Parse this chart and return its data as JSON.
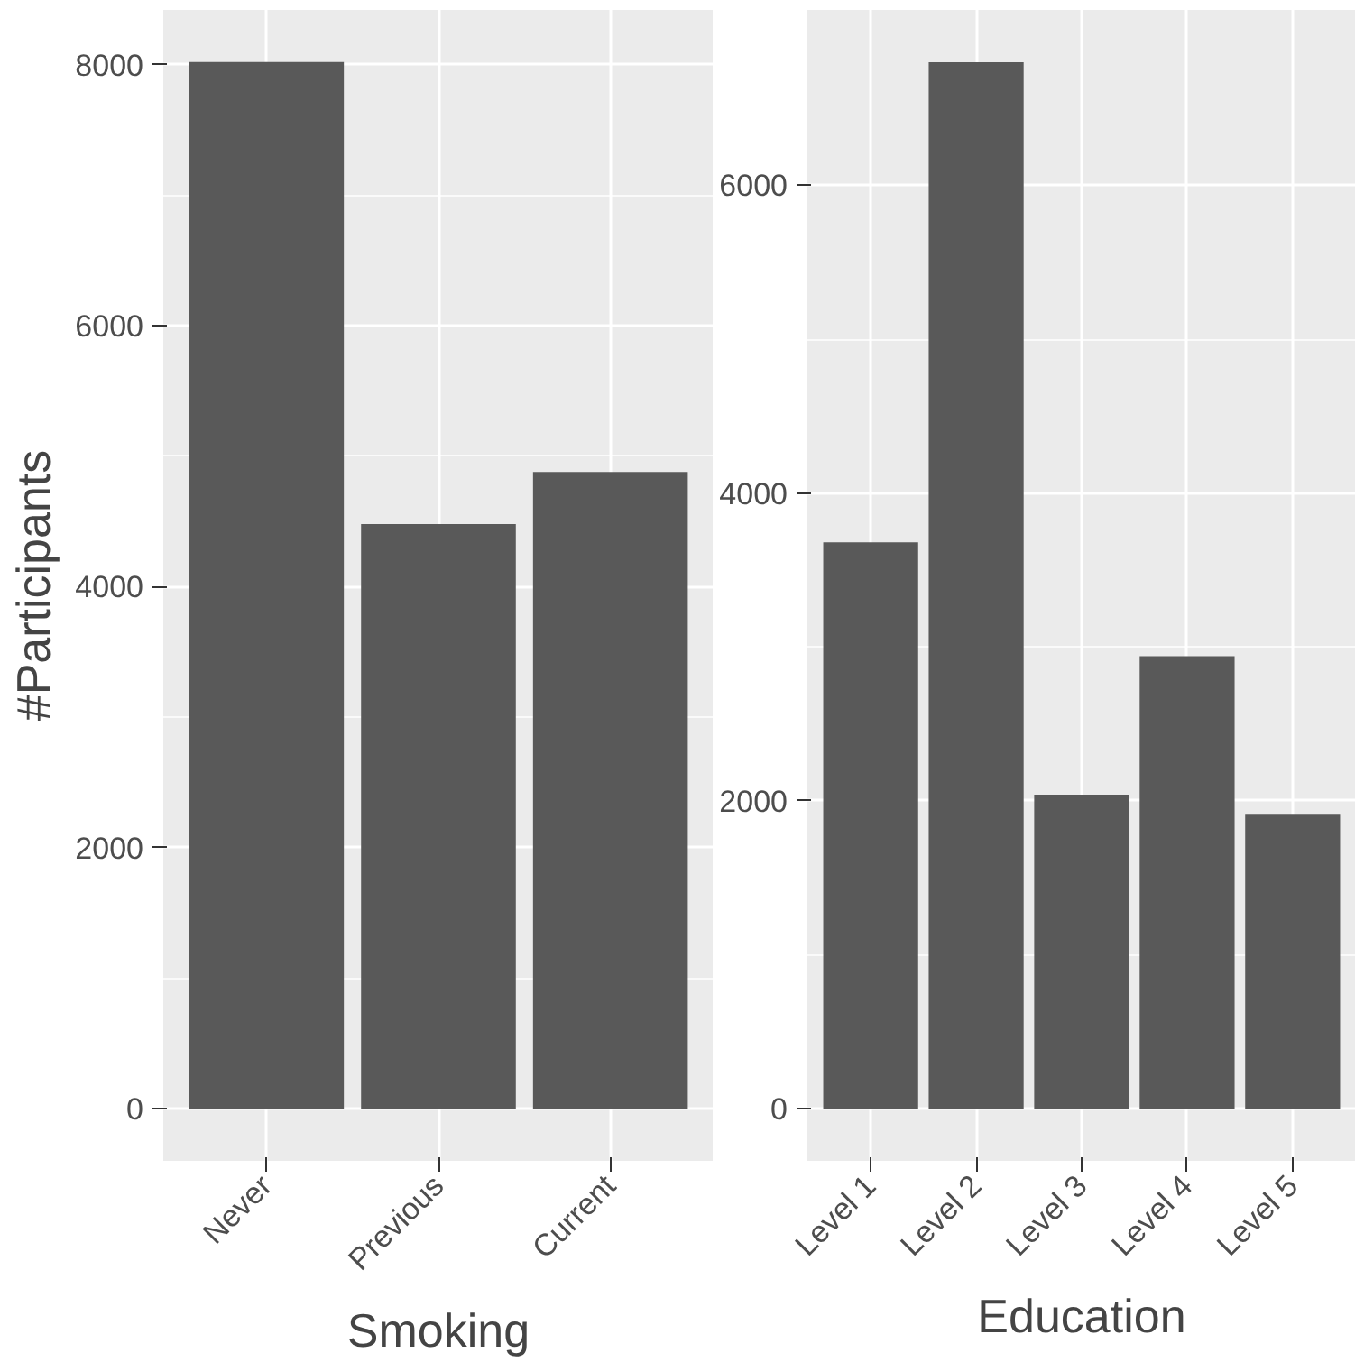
{
  "chart_data": [
    {
      "type": "bar",
      "xlabel": "Smoking",
      "ylabel": "#Participants",
      "categories": [
        "Never",
        "Previous",
        "Current"
      ],
      "values": [
        8020,
        4480,
        4880
      ],
      "color": "#595959",
      "ylim": [
        -400,
        8420
      ],
      "yticks": [
        0,
        2000,
        4000,
        6000,
        8000
      ],
      "grid": true
    },
    {
      "type": "bar",
      "xlabel": "Education",
      "categories": [
        "Level 1",
        "Level 2",
        "Level 3",
        "Level 4",
        "Level 5"
      ],
      "values": [
        3680,
        6800,
        2040,
        2940,
        1910
      ],
      "color": "#595959",
      "ylim": [
        -340,
        7140
      ],
      "yticks": [
        0,
        2000,
        4000,
        6000
      ],
      "grid": true
    }
  ]
}
